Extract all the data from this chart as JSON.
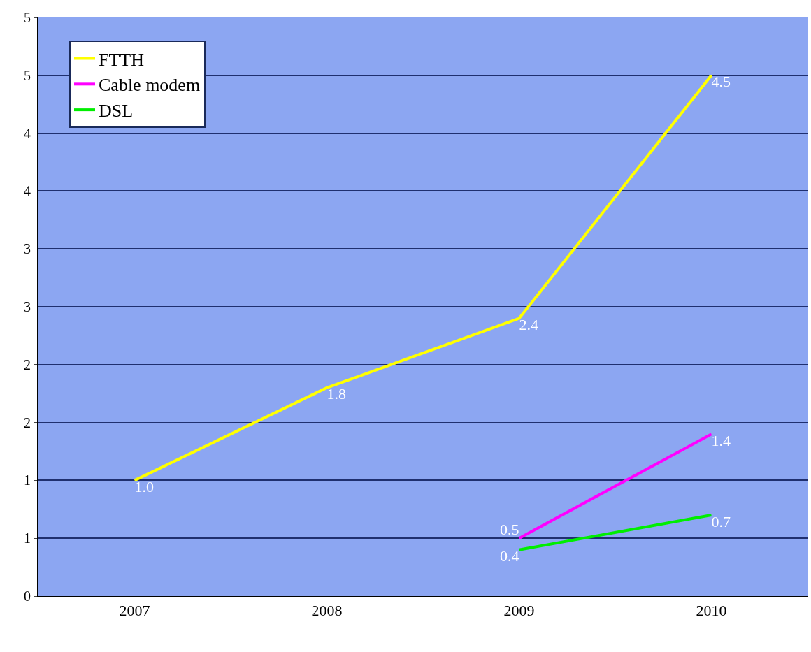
{
  "chart_data": {
    "type": "line",
    "categories": [
      "2007",
      "2008",
      "2009",
      "2010"
    ],
    "series": [
      {
        "name": "FTTH",
        "color": "#ffff00",
        "values": [
          1.0,
          1.8,
          2.4,
          4.5
        ],
        "value_labels": [
          "1.0",
          "1.8",
          "2.4",
          "4.5"
        ]
      },
      {
        "name": "Cable modem",
        "color": "#ff00ff",
        "values": [
          null,
          null,
          0.5,
          1.4
        ],
        "value_labels": [
          null,
          null,
          "0.5",
          "1.4"
        ]
      },
      {
        "name": "DSL",
        "color": "#00ee00",
        "values": [
          null,
          null,
          0.4,
          0.7
        ],
        "value_labels": [
          null,
          null,
          "0.4",
          "0.7"
        ]
      }
    ],
    "ylim": [
      0,
      5
    ],
    "yticks": [
      0,
      {
        "value": 0.5,
        "label": "1"
      },
      1,
      {
        "value": 1.5,
        "label": "2"
      },
      2,
      {
        "value": 2.5,
        "label": "3"
      },
      3,
      {
        "value": 3.5,
        "label": "4"
      },
      4,
      {
        "value": 4.5,
        "label": "5"
      },
      5
    ],
    "grid": "y",
    "legend": "top left",
    "marker": "none",
    "line_style": "solid"
  }
}
